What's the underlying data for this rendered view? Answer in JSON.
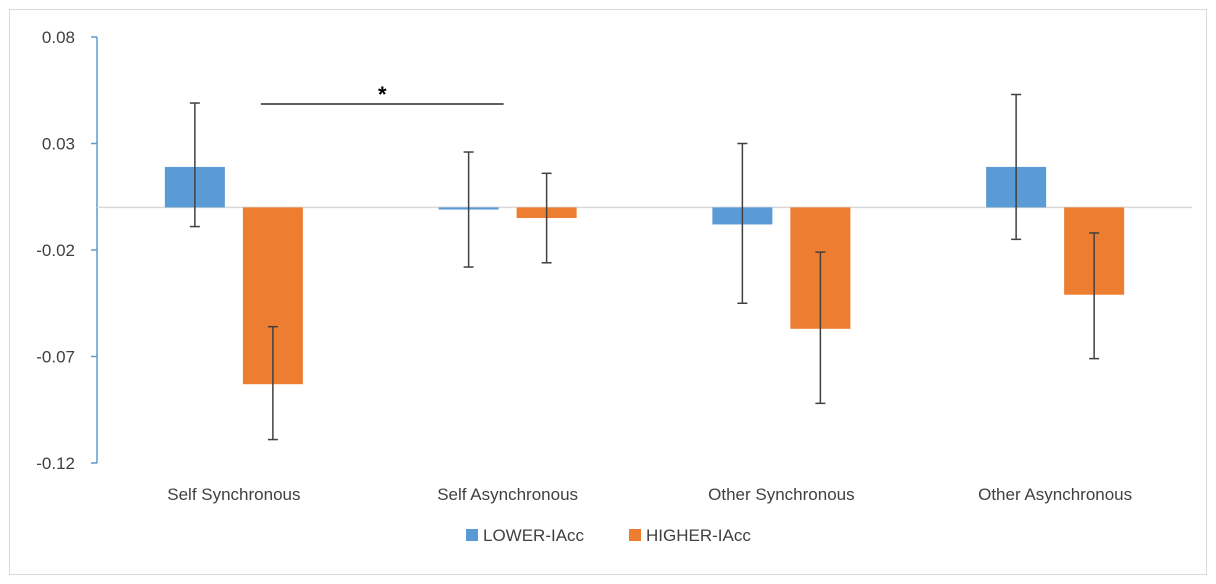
{
  "chart_data": {
    "type": "bar",
    "categories": [
      "Self Synchronous",
      "Self Asynchronous",
      "Other Synchronous",
      "Other Asynchronous"
    ],
    "series": [
      {
        "name": "LOWER-IAcc",
        "color": "#5B9BD5",
        "values": [
          0.019,
          -0.001,
          -0.008,
          0.019
        ],
        "error_low": [
          -0.009,
          -0.028,
          -0.045,
          -0.015
        ],
        "error_high": [
          0.049,
          0.026,
          0.03,
          0.053
        ]
      },
      {
        "name": "HIGHER-IAcc",
        "color": "#ED7D31",
        "values": [
          -0.083,
          -0.005,
          -0.057,
          -0.041
        ],
        "error_low": [
          -0.109,
          -0.026,
          -0.092,
          -0.071
        ],
        "error_high": [
          -0.056,
          0.016,
          -0.021,
          -0.012
        ]
      }
    ],
    "yticks": [
      "0.08",
      "0.03",
      "-0.02",
      "-0.07",
      "-0.12"
    ],
    "ylim": [
      -0.12,
      0.08
    ],
    "annotations": [
      {
        "text": "*",
        "from_category": "Self Synchronous",
        "to_category": "Self Asynchronous"
      }
    ],
    "legend_position": "bottom",
    "grid": false
  }
}
